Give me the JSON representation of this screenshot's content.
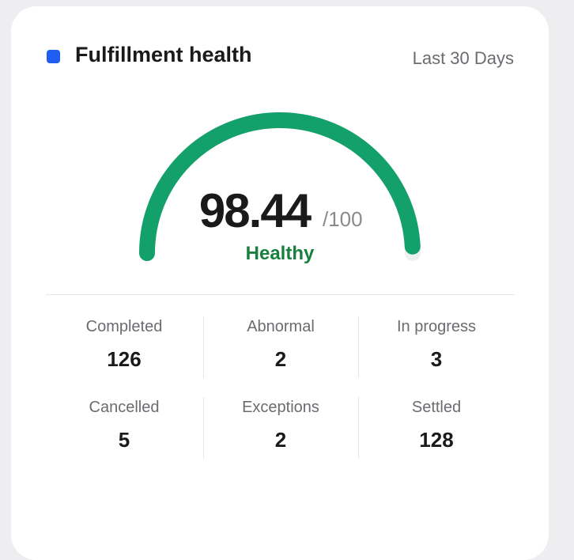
{
  "header": {
    "title": "Fulfillment health",
    "period": "Last 30 Days"
  },
  "gauge": {
    "value": 98.44,
    "max": 100,
    "max_label": "/100",
    "status": "Healthy"
  },
  "stats": [
    {
      "label": "Completed",
      "value": 126
    },
    {
      "label": "Abnormal",
      "value": 2
    },
    {
      "label": "In progress",
      "value": 3
    },
    {
      "label": "Cancelled",
      "value": 5
    },
    {
      "label": "Exceptions",
      "value": 2
    },
    {
      "label": "Settled",
      "value": 128
    }
  ]
}
